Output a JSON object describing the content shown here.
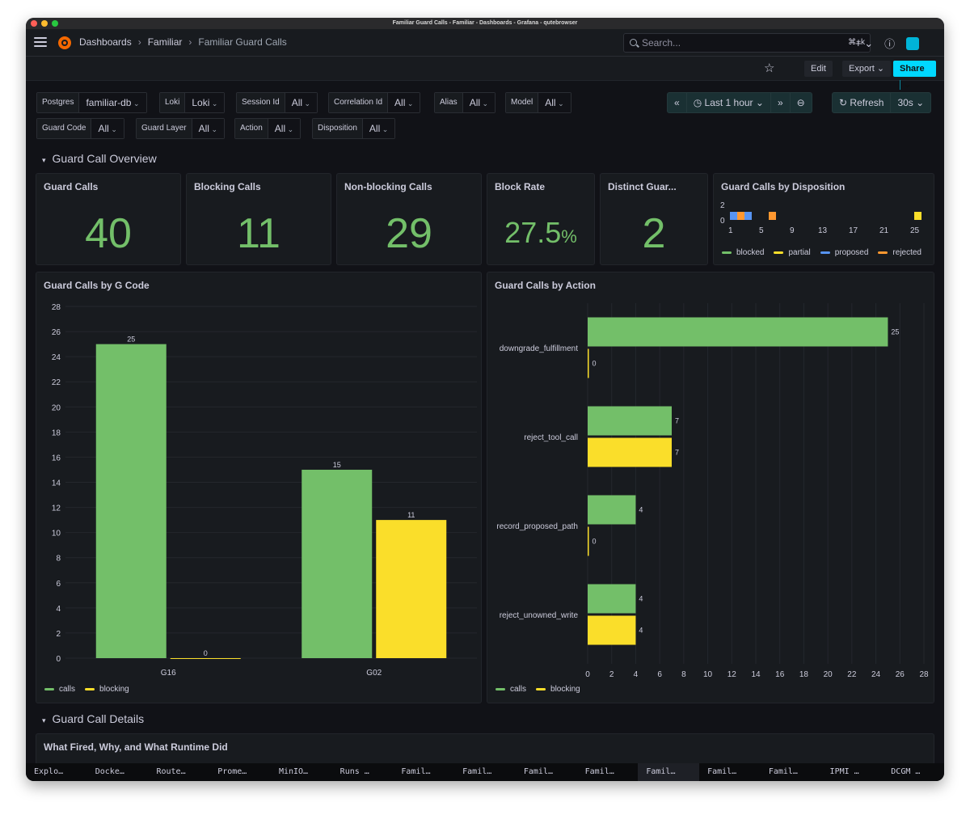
{
  "window": {
    "title": "Familiar Guard Calls - Familiar - Dashboards - Grafana - qutebrowser"
  },
  "breadcrumbs": [
    "Dashboards",
    "Familiar",
    "Familiar Guard Calls"
  ],
  "search": {
    "placeholder": "Search...",
    "shortcut": "⌘+k"
  },
  "toolbar": {
    "edit": "Edit",
    "export": "Export",
    "share": "Share"
  },
  "variables": [
    {
      "label": "Postgres",
      "value": "familiar-db"
    },
    {
      "label": "Loki",
      "value": "Loki"
    },
    {
      "label": "Session Id",
      "value": "All"
    },
    {
      "label": "Correlation Id",
      "value": "All"
    },
    {
      "label": "Alias",
      "value": "All"
    },
    {
      "label": "Model",
      "value": "All"
    },
    {
      "label": "Guard Code",
      "value": "All"
    },
    {
      "label": "Guard Layer",
      "value": "All"
    },
    {
      "label": "Action",
      "value": "All"
    },
    {
      "label": "Disposition",
      "value": "All"
    }
  ],
  "time": {
    "range": "Last 1 hour",
    "refresh": "Refresh",
    "interval": "30s"
  },
  "rows": {
    "overview": "Guard Call Overview",
    "details": "Guard Call Details"
  },
  "stats": [
    {
      "title": "Guard Calls",
      "value": "40",
      "unit": ""
    },
    {
      "title": "Blocking Calls",
      "value": "11",
      "unit": ""
    },
    {
      "title": "Non-blocking Calls",
      "value": "29",
      "unit": ""
    },
    {
      "title": "Block Rate",
      "value": "27.5",
      "unit": "%"
    },
    {
      "title": "Distinct Guar...",
      "value": "2",
      "unit": ""
    }
  ],
  "disposition_panel": {
    "title": "Guard Calls by Disposition",
    "y_ticks": [
      "2",
      "0"
    ],
    "x_ticks": [
      "1",
      "5",
      "9",
      "13",
      "17",
      "21",
      "25"
    ],
    "legend": [
      "blocked",
      "partial",
      "proposed",
      "rejected"
    ]
  },
  "colors": {
    "calls": "#73bf69",
    "blocking": "#fade2a",
    "blocked": "#73bf69",
    "partial": "#fade2a",
    "proposed": "#5794f2",
    "rejected": "#ff9830",
    "accent": "#00d8ff"
  },
  "gcode_panel": {
    "title": "Guard Calls by G Code",
    "legend": [
      "calls",
      "blocking"
    ]
  },
  "action_panel": {
    "title": "Guard Calls by Action",
    "legend": [
      "calls",
      "blocking"
    ]
  },
  "details_panel": {
    "title": "What Fired, Why, and What Runtime Did"
  },
  "chart_data": [
    {
      "type": "bar",
      "title": "Guard Calls by G Code",
      "categories": [
        "G16",
        "G02"
      ],
      "series": [
        {
          "name": "calls",
          "values": [
            25,
            15
          ]
        },
        {
          "name": "blocking",
          "values": [
            0,
            11
          ]
        }
      ],
      "ylim": [
        0,
        28
      ],
      "yticks": [
        0,
        2,
        4,
        6,
        8,
        10,
        12,
        14,
        16,
        18,
        20,
        22,
        24,
        26,
        28
      ]
    },
    {
      "type": "bar",
      "orientation": "horizontal",
      "title": "Guard Calls by Action",
      "categories": [
        "downgrade_fulfillment",
        "reject_tool_call",
        "record_proposed_path",
        "reject_unowned_write"
      ],
      "series": [
        {
          "name": "calls",
          "values": [
            25,
            7,
            4,
            4
          ]
        },
        {
          "name": "blocking",
          "values": [
            0,
            7,
            0,
            4
          ]
        }
      ],
      "xlim": [
        0,
        28
      ],
      "xticks": [
        0,
        2,
        4,
        6,
        8,
        10,
        12,
        14,
        16,
        18,
        20,
        22,
        24,
        26,
        28
      ]
    }
  ],
  "browser_tabs": [
    "Explo…",
    "Docke…",
    "Route…",
    "Prome…",
    "MinIO…",
    "Runs …",
    "Famil…",
    "Famil…",
    "Famil…",
    "Famil…",
    "Famil…",
    "Famil…",
    "Famil…",
    "IPMI …",
    "DCGM …"
  ]
}
